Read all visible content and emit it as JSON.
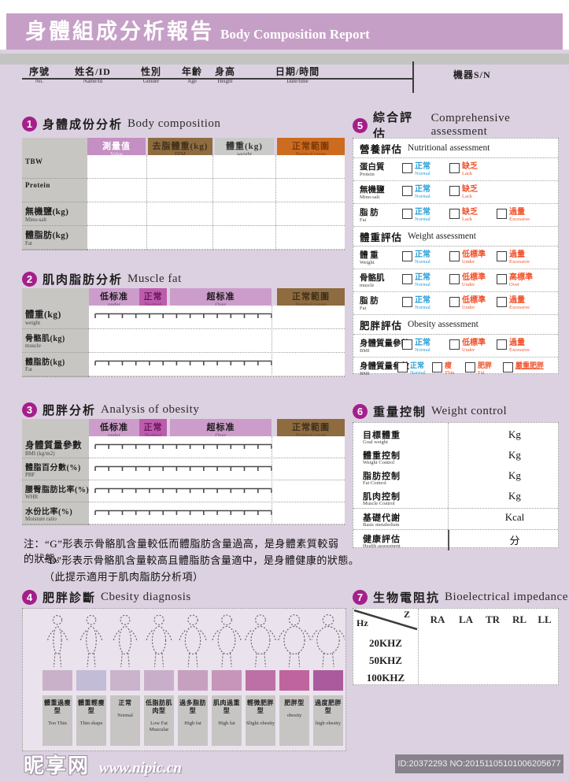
{
  "page": {
    "title_zh": "身體組成分析報告",
    "title_en": "Body Composition Report"
  },
  "info": {
    "fields": [
      {
        "zh": "序號",
        "en": "No."
      },
      {
        "zh": "姓名/ID",
        "en": "Name/Id"
      },
      {
        "zh": "性別",
        "en": "Gender"
      },
      {
        "zh": "年齡",
        "en": "Age"
      },
      {
        "zh": "身高",
        "en": "Height"
      },
      {
        "zh": "日期/時間",
        "en": "Date/time"
      }
    ],
    "machine_sn": "機器S/N"
  },
  "s1": {
    "num": "1",
    "title_zh": "身體成份分析",
    "title_en": "Body composition",
    "cols": [
      {
        "zh": "測量值",
        "en": "Value",
        "bg": "#c48fc2",
        "fg": "#ffffff"
      },
      {
        "zh": "去脂體重(kg)",
        "en": "FFM",
        "bg": "#8f6b40",
        "fg": "#3f311b"
      },
      {
        "zh": "體重(kg)",
        "en": "weight",
        "bg": "#cacac8",
        "fg": "#333333"
      },
      {
        "zh": "正常範圍",
        "en": "Normal range",
        "bg": "#cd6b20",
        "fg": "#7c3a08"
      }
    ],
    "rows": [
      {
        "main": "TBW",
        "sub": ""
      },
      {
        "main": "Protein",
        "sub": ""
      },
      {
        "main": "無機鹽(kg)",
        "sub": "Mino-salt"
      },
      {
        "main": "體脂肪(kg)",
        "sub": "Fat"
      }
    ]
  },
  "s2": {
    "num": "2",
    "title_zh": "肌肉脂肪分析",
    "title_en": "Muscle fat",
    "bands": [
      {
        "zh": "低标准",
        "en": "under"
      },
      {
        "zh": "正常",
        "en": "Normal"
      },
      {
        "zh": "超标准",
        "en": "Over"
      },
      {
        "zh": "正常範圍",
        "en": "Normal range"
      }
    ],
    "rows": [
      {
        "main": "體重(kg)",
        "sub": "weight",
        "ruler": true
      },
      {
        "main": "骨骼肌(kg)",
        "sub": "muscle",
        "ruler": false
      },
      {
        "main": "體脂肪(kg)",
        "sub": "Fat",
        "ruler": true
      }
    ]
  },
  "s3": {
    "num": "3",
    "title_zh": "肥胖分析",
    "title_en": "Analysis of obesity",
    "bands": [
      {
        "zh": "低标准",
        "en": "under"
      },
      {
        "zh": "正常",
        "en": "Normal"
      },
      {
        "zh": "超标准",
        "en": "Over"
      },
      {
        "zh": "正常範圍",
        "en": "Normal range"
      }
    ],
    "rows": [
      {
        "main": "身體質量參數",
        "sub": "BMI (kg/m2)",
        "ruler": true
      },
      {
        "main": "體脂百分數(%)",
        "sub": "PBF",
        "ruler": true
      },
      {
        "main": "腰臀脂肪比率(%)",
        "sub": "WHR",
        "ruler": true
      },
      {
        "main": "水份比率(%)",
        "sub": "Moisture ratio",
        "ruler": true
      }
    ],
    "notes": [
      "注：“G”形表示骨骼肌含量較低而體脂肪含量過高，是身體素質較弱的狀態。",
      "“D”形表示骨骼肌含量較高且體脂肪含量適中，是身體健康的狀態。",
      "（此提示適用于肌肉脂肪分析項）"
    ]
  },
  "s4": {
    "num": "4",
    "title_zh": "肥胖診斷",
    "title_en": "Cbesity diagnosis",
    "types": [
      {
        "zh": "體重過瘦型",
        "en": "Too Thin",
        "color": "#c9b2c9"
      },
      {
        "zh": "體重輕瘦型",
        "en": "Thin shape",
        "color": "#c3bcd6"
      },
      {
        "zh": "正常",
        "en": "Normal",
        "color": "#c9b4cc"
      },
      {
        "zh": "低脂肪肌肉型",
        "en": "Low Fat Muscular",
        "color": "#c9aeca"
      },
      {
        "zh": "過多脂肪型",
        "en": "High fat",
        "color": "#c7a0c0"
      },
      {
        "zh": "肌肉過重型",
        "en": "High fat",
        "color": "#c795ba"
      },
      {
        "zh": "輕微肥胖型",
        "en": "Slight obesity",
        "color": "#bd70a5"
      },
      {
        "zh": "肥胖型",
        "en": "obesity",
        "color": "#c0649f"
      },
      {
        "zh": "過度肥胖型",
        "en": "high obesity",
        "color": "#ac5a9e"
      }
    ]
  },
  "s5": {
    "num": "5",
    "title_zh": "綜合評估",
    "title_en": "Comprehensive assessment",
    "groups": [
      {
        "title_zh": "營養評估",
        "title_en": "Nutritional assessment",
        "rows": [
          {
            "zh": "蛋白質",
            "en": "Protein",
            "opts": [
              {
                "zh": "正常",
                "en": "Normal",
                "c": "blue"
              },
              {
                "zh": "缺乏",
                "en": "Lack",
                "c": "red"
              }
            ]
          },
          {
            "zh": "無機鹽",
            "en": "Mino-salt",
            "opts": [
              {
                "zh": "正常",
                "en": "Normal",
                "c": "blue"
              },
              {
                "zh": "缺乏",
                "en": "Lack",
                "c": "red"
              }
            ]
          },
          {
            "zh": "脂 肪",
            "en": "Fat",
            "opts": [
              {
                "zh": "正常",
                "en": "Normal",
                "c": "blue"
              },
              {
                "zh": "缺乏",
                "en": "Lack",
                "c": "red"
              },
              {
                "zh": "過量",
                "en": "Excessive",
                "c": "red"
              }
            ]
          }
        ]
      },
      {
        "title_zh": "體重評估",
        "title_en": "Weight assessment",
        "rows": [
          {
            "zh": "體 重",
            "en": "Weight",
            "opts": [
              {
                "zh": "正常",
                "en": "Normal",
                "c": "blue"
              },
              {
                "zh": "低標準",
                "en": "Under",
                "c": "red"
              },
              {
                "zh": "過量",
                "en": "Excessive",
                "c": "red"
              }
            ]
          },
          {
            "zh": "骨骼肌",
            "en": "muscle",
            "opts": [
              {
                "zh": "正常",
                "en": "Normal",
                "c": "blue"
              },
              {
                "zh": "低標準",
                "en": "Under",
                "c": "red"
              },
              {
                "zh": "高標準",
                "en": "Over",
                "c": "red"
              }
            ]
          },
          {
            "zh": "脂 肪",
            "en": "Fat",
            "opts": [
              {
                "zh": "正常",
                "en": "Normal",
                "c": "blue"
              },
              {
                "zh": "低標準",
                "en": "Under",
                "c": "red"
              },
              {
                "zh": "過量",
                "en": "Excessive",
                "c": "red"
              }
            ]
          }
        ]
      },
      {
        "title_zh": "肥胖評估",
        "title_en": "Obesity assessment",
        "rows": [
          {
            "zh": "身體質量參數",
            "en": "BMI",
            "opts": [
              {
                "zh": "正常",
                "en": "Normal",
                "c": "blue"
              },
              {
                "zh": "低標準",
                "en": "Under",
                "c": "red"
              },
              {
                "zh": "過量",
                "en": "Excessive",
                "c": "red"
              }
            ]
          },
          {
            "zh": "身體質量參數",
            "en": "BMI",
            "opts": [
              {
                "zh": "正常",
                "en": "Normal",
                "c": "blue"
              },
              {
                "zh": "瘦",
                "en": "Thin",
                "c": "red"
              },
              {
                "zh": "肥胖",
                "en": "Fat",
                "c": "red"
              },
              {
                "zh": "嚴重肥胖",
                "en": "",
                "c": "red",
                "u": true
              }
            ]
          }
        ]
      }
    ]
  },
  "s6": {
    "num": "6",
    "title_zh": "重量控制",
    "title_en": "Weight control",
    "rows": [
      {
        "zh": "目標體重",
        "en": "Goal weight",
        "unit": "Kg"
      },
      {
        "zh": "體重控制",
        "en": "Weight Control",
        "unit": "Kg"
      },
      {
        "zh": "脂肪控制",
        "en": "Fat Control",
        "unit": "Kg"
      },
      {
        "zh": "肌肉控制",
        "en": "Muscle Control",
        "unit": "Kg"
      },
      {
        "zh": "基礎代謝",
        "en": "Basic metabolism",
        "unit": "Kcal"
      },
      {
        "zh": "健康評估",
        "en": "Health assessment",
        "unit": "分"
      }
    ]
  },
  "s7": {
    "num": "7",
    "title_zh": "生物電阻抗",
    "title_en": "Bioelectrical impedance",
    "corner": {
      "hz": "Hz",
      "z": "Z"
    },
    "cols": [
      "RA",
      "LA",
      "TR",
      "RL",
      "LL"
    ],
    "rows": [
      "20KHZ",
      "50KHZ",
      "100KHZ"
    ]
  },
  "footer": {
    "site_name": "昵享网",
    "site_url": "www.nipic.cn",
    "id_text": "ID:20372293 NO:20151105101006205677"
  },
  "colors": {
    "accent_magenta": "#a51f8b",
    "banner": "#c69fc7",
    "checkbox_blue": "#2a9fd8",
    "checkbox_red": "#f0512a",
    "band_light": "#cc9dcb",
    "band_normal": "#bd5cab",
    "band_brown": "#8f6b40",
    "header_orange": "#cd6b20"
  }
}
